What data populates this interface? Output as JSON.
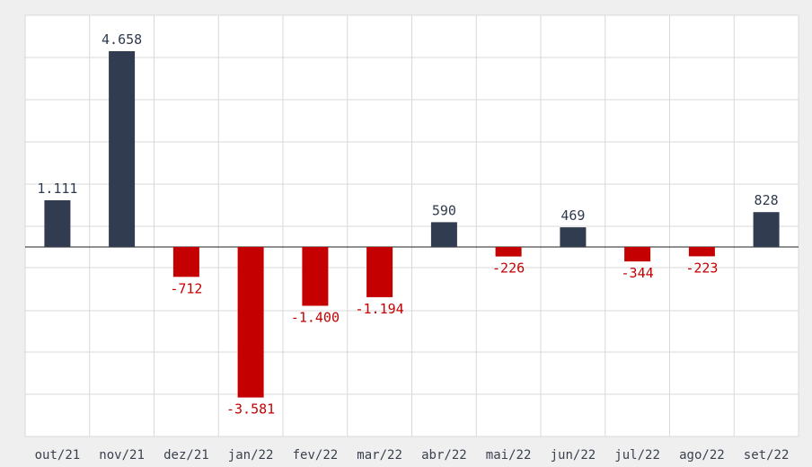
{
  "chart_data": {
    "type": "bar",
    "categories": [
      "out/21",
      "nov/21",
      "dez/21",
      "jan/22",
      "fev/22",
      "mar/22",
      "abr/22",
      "mai/22",
      "jun/22",
      "jul/22",
      "ago/22",
      "set/22"
    ],
    "values": [
      1111,
      4658,
      -712,
      -3581,
      -1400,
      -1194,
      590,
      -226,
      469,
      -344,
      -223,
      828
    ],
    "value_labels": [
      "1.111",
      "4.658",
      "-712",
      "-3.581",
      "-1.400",
      "-1.194",
      "590",
      "-226",
      "469",
      "-344",
      "-223",
      "828"
    ],
    "ylim": [
      -4500,
      4500
    ],
    "grid": true,
    "colors": {
      "positive": "#323c50",
      "negative": "#c40000",
      "positive_label": "#2f3a4f",
      "negative_label": "#c40000"
    }
  }
}
